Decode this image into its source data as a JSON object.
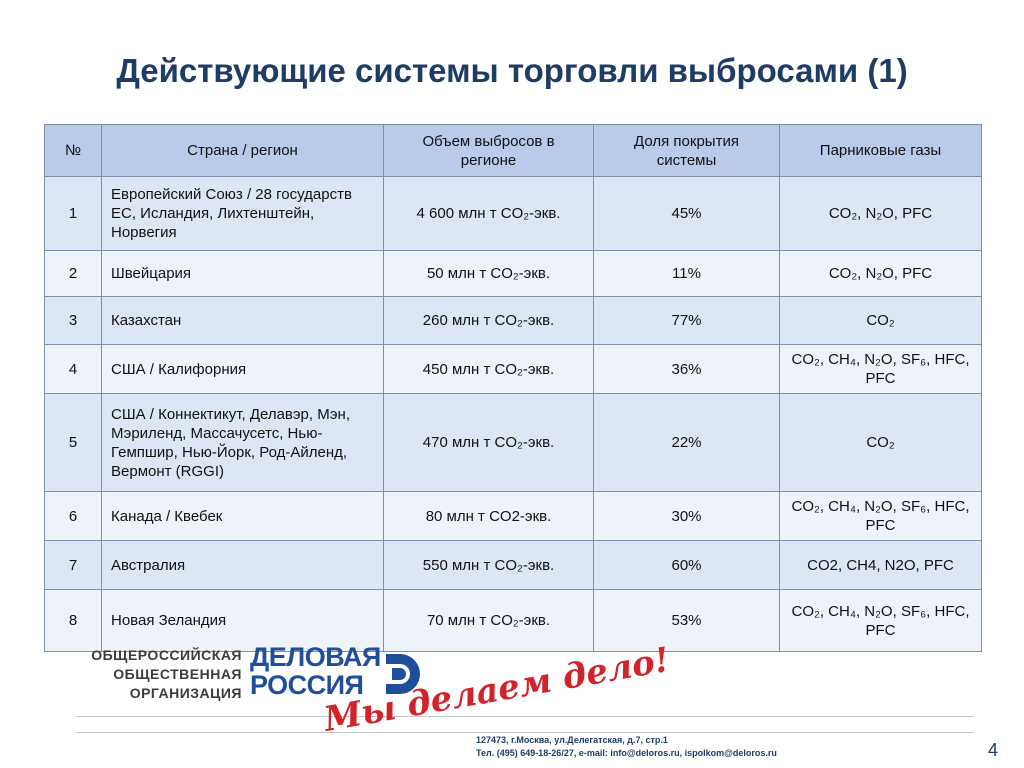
{
  "title": "Действующие системы торговли выбросами (1)",
  "table": {
    "headers": [
      "№",
      "Страна / регион",
      "Объем выбросов в регионе",
      "Доля покрытия системы",
      "Парниковые газы"
    ],
    "rows": [
      {
        "num": "1",
        "region": "Европейский Союз / 28 государств ЕС, Исландия, Лихтенштейн, Норвегия",
        "volume": "4 600 млн т CO₂-экв.",
        "share": "45%",
        "gases": "CO₂, N₂O, PFC"
      },
      {
        "num": "2",
        "region": "Швейцария",
        "volume": "50 млн т CO₂-экв.",
        "share": "11%",
        "gases": "CO₂, N₂O, PFC"
      },
      {
        "num": "3",
        "region": "Казахстан",
        "volume": "260 млн т CO₂-экв.",
        "share": "77%",
        "gases": "CO₂"
      },
      {
        "num": "4",
        "region": "США / Калифорния",
        "volume": "450 млн т CO₂-экв.",
        "share": "36%",
        "gases": "CO₂, CH₄, N₂O, SF₆, HFC, PFC"
      },
      {
        "num": "5",
        "region": "США / Коннектикут, Делавэр, Мэн, Мэриленд, Массачусетс, Нью-Гемпшир, Нью-Йорк, Род-Айленд, Вермонт (RGGI)",
        "volume": "470 млн т CO₂-экв.",
        "share": "22%",
        "gases": "CO₂"
      },
      {
        "num": "6",
        "region": "Канада / Квебек",
        "volume": "80 млн т CO2-экв.",
        "share": "30%",
        "gases": "CO₂, CH₄, N₂O, SF₆, HFC, PFC"
      },
      {
        "num": "7",
        "region": "Австралия",
        "volume": "550 млн т CO₂-экв.",
        "share": "60%",
        "gases": "CO2, CH4, N2O, PFC"
      },
      {
        "num": "8",
        "region": "Новая Зеландия",
        "volume": "70 млн т CO₂-экв.",
        "share": "53%",
        "gases": "CO₂, CH₄, N₂O, SF₆, HFC, PFC"
      }
    ]
  },
  "footer": {
    "org_lines": [
      "ОБЩЕРОССИЙСКАЯ",
      "ОБЩЕСТВЕННАЯ",
      "ОРГАНИЗАЦИЯ"
    ],
    "brand_lines": [
      "ДЕЛОВАЯ",
      "РОССИЯ"
    ],
    "slogan": "Мы делаем дело!",
    "address": "127473, г.Москва, ул.Делегатская, д.7, стр.1",
    "contacts": "Тел. (495) 649-18-26/27, e-mail: info@deloros.ru, ispolkom@deloros.ru",
    "brand_color": "#1f4e9a",
    "slogan_color": "#d2232a"
  },
  "page_number": "4"
}
